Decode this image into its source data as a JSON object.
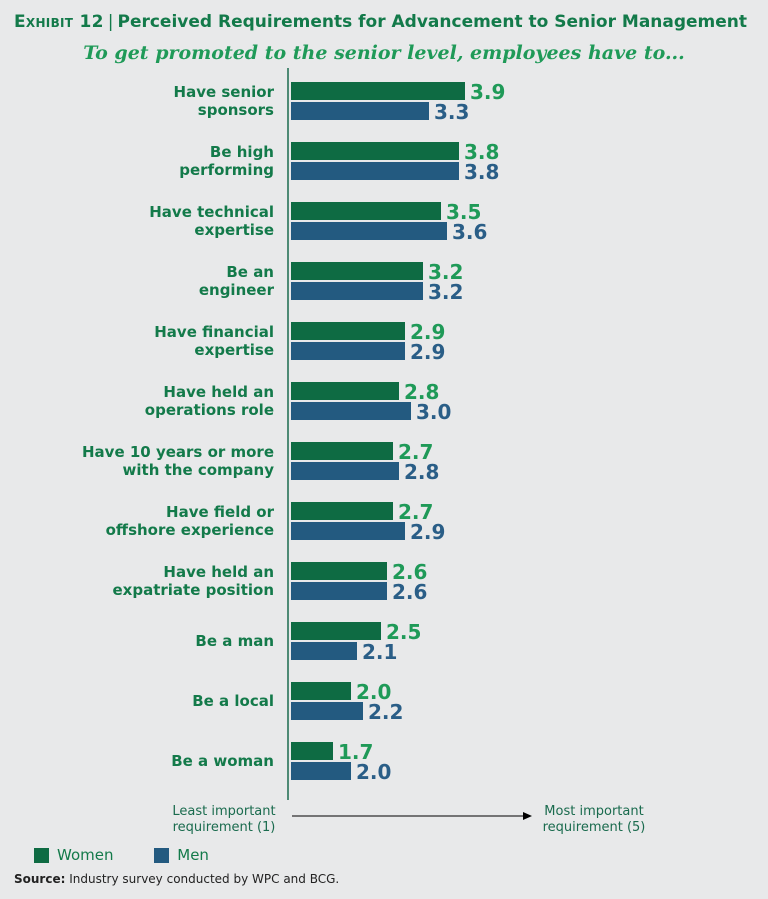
{
  "header": {
    "exhibit": "Exhibit 12",
    "separator": "|",
    "title": "Perceived Requirements for Advancement to Senior Management"
  },
  "subtitle": "To get promoted to the senior level, employees have to...",
  "chart_data": {
    "type": "bar",
    "orientation": "horizontal",
    "categories": [
      [
        "Have senior",
        "sponsors"
      ],
      [
        "Be high",
        "performing"
      ],
      [
        "Have technical",
        "expertise"
      ],
      [
        "Be an",
        "engineer"
      ],
      [
        "Have financial",
        "expertise"
      ],
      [
        "Have held an",
        "operations role"
      ],
      [
        "Have 10 years or more",
        "with the company"
      ],
      [
        "Have field or",
        "offshore experience"
      ],
      [
        "Have held an",
        "expatriate position"
      ],
      [
        "Be a man"
      ],
      [
        "Be a local"
      ],
      [
        "Be a woman"
      ]
    ],
    "series": [
      {
        "name": "Women",
        "color": "#0e6b43",
        "label_color": "#1f9a58",
        "values": [
          3.9,
          3.8,
          3.5,
          3.2,
          2.9,
          2.8,
          2.7,
          2.7,
          2.6,
          2.5,
          2.0,
          1.7
        ]
      },
      {
        "name": "Men",
        "color": "#235a80",
        "label_color": "#2a5e87",
        "values": [
          3.3,
          3.8,
          3.6,
          3.2,
          2.9,
          3.0,
          2.8,
          2.9,
          2.6,
          2.1,
          2.2,
          2.0
        ]
      }
    ],
    "xlim": [
      1,
      5
    ],
    "scale_labels": {
      "left": [
        "Least important",
        "requirement (1)"
      ],
      "right": [
        "Most important",
        "requirement (5)"
      ]
    }
  },
  "legend": {
    "women": "Women",
    "men": "Men"
  },
  "source": {
    "label": "Source:",
    "text": "Industry survey conducted by WPC and BCG."
  }
}
